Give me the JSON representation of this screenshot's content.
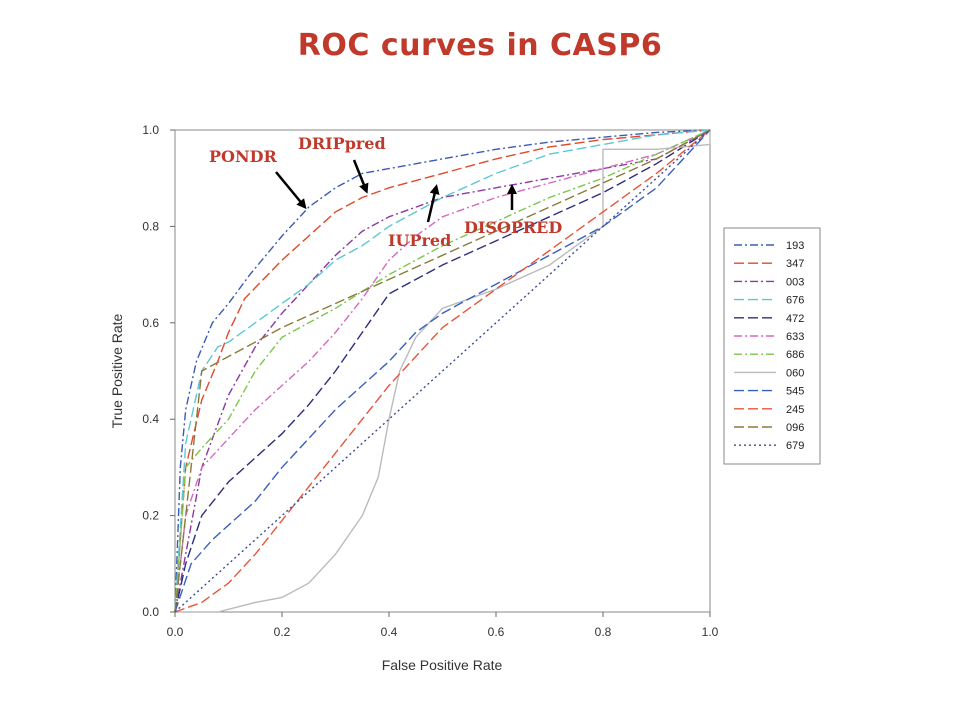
{
  "chart_data": {
    "type": "line",
    "title": "ROC curves in CASP6",
    "xlabel": "False Positive Rate",
    "ylabel": "True Positive Rate",
    "xlim": [
      0,
      1
    ],
    "ylim": [
      0,
      1
    ],
    "xticks": [
      "0.0",
      "0.2",
      "0.4",
      "0.6",
      "0.8",
      "1.0"
    ],
    "yticks": [
      "0.0",
      "0.2",
      "0.4",
      "0.6",
      "0.8",
      "1.0"
    ],
    "grid": false,
    "legend": "right",
    "series": [
      {
        "name": "193",
        "color": "#3b5bb5",
        "dash": "8,3,2,3",
        "x": [
          0,
          0.01,
          0.02,
          0.04,
          0.07,
          0.1,
          0.14,
          0.2,
          0.25,
          0.3,
          0.35,
          0.4,
          0.5,
          0.6,
          0.7,
          0.8,
          0.9,
          1.0
        ],
        "y": [
          0,
          0.3,
          0.42,
          0.52,
          0.6,
          0.64,
          0.7,
          0.78,
          0.84,
          0.88,
          0.91,
          0.92,
          0.94,
          0.96,
          0.975,
          0.985,
          0.995,
          1.0
        ]
      },
      {
        "name": "347",
        "color": "#e04a2a",
        "dash": "10,4",
        "x": [
          0,
          0.01,
          0.02,
          0.05,
          0.08,
          0.1,
          0.13,
          0.2,
          0.25,
          0.3,
          0.35,
          0.4,
          0.5,
          0.6,
          0.7,
          0.8,
          0.9,
          1.0
        ],
        "y": [
          0,
          0.15,
          0.3,
          0.44,
          0.52,
          0.58,
          0.65,
          0.73,
          0.78,
          0.83,
          0.86,
          0.88,
          0.91,
          0.94,
          0.965,
          0.98,
          0.99,
          1.0
        ]
      },
      {
        "name": "003",
        "color": "#8b3aa3",
        "dash": "8,3,2,3",
        "x": [
          0,
          0.05,
          0.1,
          0.15,
          0.2,
          0.25,
          0.3,
          0.35,
          0.4,
          0.5,
          0.6,
          0.7,
          0.8,
          0.9,
          1.0
        ],
        "y": [
          0,
          0.3,
          0.45,
          0.55,
          0.62,
          0.68,
          0.74,
          0.79,
          0.82,
          0.86,
          0.88,
          0.9,
          0.92,
          0.94,
          1.0
        ]
      },
      {
        "name": "676",
        "color": "#5bc8d8",
        "dash": "10,4",
        "x": [
          0,
          0.02,
          0.05,
          0.08,
          0.1,
          0.15,
          0.2,
          0.25,
          0.3,
          0.35,
          0.4,
          0.5,
          0.6,
          0.7,
          0.8,
          0.9,
          1.0
        ],
        "y": [
          0,
          0.35,
          0.5,
          0.55,
          0.56,
          0.6,
          0.64,
          0.68,
          0.73,
          0.76,
          0.8,
          0.86,
          0.91,
          0.95,
          0.97,
          0.99,
          1.0
        ]
      },
      {
        "name": "472",
        "color": "#2e2e7a",
        "dash": "10,4",
        "x": [
          0,
          0.02,
          0.05,
          0.1,
          0.15,
          0.2,
          0.25,
          0.3,
          0.35,
          0.4,
          0.5,
          0.6,
          0.7,
          0.8,
          0.9,
          1.0
        ],
        "y": [
          0,
          0.1,
          0.2,
          0.27,
          0.32,
          0.37,
          0.43,
          0.5,
          0.58,
          0.66,
          0.72,
          0.77,
          0.82,
          0.87,
          0.93,
          1.0
        ]
      },
      {
        "name": "633",
        "color": "#d46ac0",
        "dash": "8,3,2,3",
        "x": [
          0,
          0.02,
          0.05,
          0.1,
          0.15,
          0.2,
          0.25,
          0.3,
          0.35,
          0.4,
          0.45,
          0.5,
          0.6,
          0.7,
          0.8,
          0.9,
          1.0
        ],
        "y": [
          0,
          0.2,
          0.3,
          0.36,
          0.42,
          0.47,
          0.52,
          0.58,
          0.65,
          0.73,
          0.78,
          0.82,
          0.86,
          0.89,
          0.92,
          0.95,
          1.0
        ]
      },
      {
        "name": "686",
        "color": "#7ac84a",
        "dash": "8,3,2,3",
        "x": [
          0,
          0.02,
          0.05,
          0.1,
          0.15,
          0.2,
          0.3,
          0.4,
          0.5,
          0.6,
          0.7,
          0.8,
          0.9,
          1.0
        ],
        "y": [
          0,
          0.3,
          0.34,
          0.4,
          0.5,
          0.57,
          0.63,
          0.7,
          0.76,
          0.81,
          0.86,
          0.9,
          0.95,
          1.0
        ]
      },
      {
        "name": "060",
        "color": "#bbbbbb",
        "dash": "",
        "x": [
          0,
          0.08,
          0.15,
          0.2,
          0.25,
          0.3,
          0.35,
          0.38,
          0.4,
          0.42,
          0.45,
          0.5,
          0.55,
          0.6,
          0.7,
          0.8,
          0.8,
          0.9,
          1.0,
          1.0
        ],
        "y": [
          0,
          0,
          0.02,
          0.03,
          0.06,
          0.12,
          0.2,
          0.28,
          0.4,
          0.5,
          0.57,
          0.63,
          0.65,
          0.67,
          0.72,
          0.8,
          0.96,
          0.96,
          0.97,
          1.0
        ]
      },
      {
        "name": "545",
        "color": "#3a5fc0",
        "dash": "10,4",
        "x": [
          0,
          0.03,
          0.07,
          0.1,
          0.15,
          0.2,
          0.3,
          0.4,
          0.45,
          0.5,
          0.6,
          0.7,
          0.8,
          0.9,
          1.0
        ],
        "y": [
          0,
          0.1,
          0.15,
          0.18,
          0.23,
          0.3,
          0.42,
          0.52,
          0.58,
          0.62,
          0.68,
          0.74,
          0.8,
          0.88,
          1.0
        ]
      },
      {
        "name": "245",
        "color": "#e8553a",
        "dash": "10,4",
        "x": [
          0,
          0.05,
          0.1,
          0.15,
          0.2,
          0.25,
          0.3,
          0.35,
          0.4,
          0.45,
          0.5,
          0.6,
          0.7,
          0.8,
          0.9,
          1.0
        ],
        "y": [
          0,
          0.02,
          0.06,
          0.12,
          0.19,
          0.26,
          0.33,
          0.4,
          0.47,
          0.53,
          0.59,
          0.67,
          0.75,
          0.83,
          0.91,
          1.0
        ]
      },
      {
        "name": "096",
        "color": "#8a7a3a",
        "dash": "10,4",
        "x": [
          0,
          0.05,
          0.1,
          0.15,
          0.2,
          0.3,
          0.4,
          0.5,
          0.6,
          0.7,
          0.8,
          0.9,
          1.0
        ],
        "y": [
          0,
          0.5,
          0.53,
          0.56,
          0.59,
          0.64,
          0.69,
          0.74,
          0.79,
          0.84,
          0.89,
          0.94,
          1.0
        ]
      },
      {
        "name": "679",
        "color": "#3a4a9a",
        "dash": "2,3",
        "x": [
          0,
          1.0
        ],
        "y": [
          0,
          1.0
        ]
      }
    ],
    "annotations": [
      {
        "text": "PONDR"
      },
      {
        "text": "DRIPpred"
      },
      {
        "text": "IUPred"
      },
      {
        "text": "DISOPRED"
      }
    ]
  }
}
